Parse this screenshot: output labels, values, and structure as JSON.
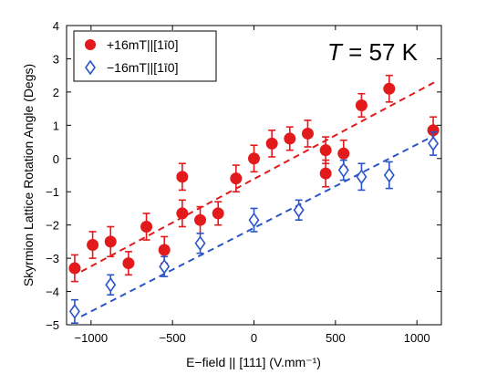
{
  "colors": {
    "series_pos": "#e31a1c",
    "series_neg": "#2a55c8"
  },
  "chart_data": {
    "type": "scatter",
    "title": "",
    "xlabel": "E−field || [111] (V.mm⁻¹)",
    "ylabel": "Skyrmion Lattice Rotation Angle (Degs)",
    "xlim": [
      -1150,
      1150
    ],
    "ylim": [
      -5,
      4
    ],
    "xticks": [
      -1000,
      -500,
      0,
      500,
      1000
    ],
    "xtick_labels": [
      "−1000",
      "−500",
      "0",
      "500",
      "1000"
    ],
    "yticks": [
      -5,
      -4,
      -3,
      -2,
      -1,
      0,
      1,
      2,
      3,
      4
    ],
    "ytick_labels": [
      "−5",
      "−4",
      "−3",
      "−2",
      "−1",
      "0",
      "1",
      "2",
      "3",
      "4"
    ],
    "grid": false,
    "legend_position": "top-left",
    "annotation": {
      "italic": "T",
      "text": " = 57 K"
    },
    "series": [
      {
        "name": "+16mT||[1ī0]",
        "marker": "filled-circle",
        "color": "#e31a1c",
        "points": [
          {
            "x": -1100,
            "y": -3.3,
            "err": 0.4
          },
          {
            "x": -990,
            "y": -2.6,
            "err": 0.4
          },
          {
            "x": -880,
            "y": -2.5,
            "err": 0.45
          },
          {
            "x": -770,
            "y": -3.15,
            "err": 0.35
          },
          {
            "x": -660,
            "y": -2.05,
            "err": 0.4
          },
          {
            "x": -550,
            "y": -2.75,
            "err": 0.4
          },
          {
            "x": -440,
            "y": -0.55,
            "err": 0.4
          },
          {
            "x": -440,
            "y": -1.65,
            "err": 0.4
          },
          {
            "x": -330,
            "y": -1.85,
            "err": 0.4
          },
          {
            "x": -220,
            "y": -1.65,
            "err": 0.35
          },
          {
            "x": -110,
            "y": -0.6,
            "err": 0.4
          },
          {
            "x": 0,
            "y": 0.0,
            "err": 0.4
          },
          {
            "x": 110,
            "y": 0.45,
            "err": 0.4
          },
          {
            "x": 220,
            "y": 0.6,
            "err": 0.35
          },
          {
            "x": 330,
            "y": 0.75,
            "err": 0.4
          },
          {
            "x": 440,
            "y": 0.25,
            "err": 0.4
          },
          {
            "x": 440,
            "y": -0.45,
            "err": 0.4
          },
          {
            "x": 550,
            "y": 0.15,
            "err": 0.4
          },
          {
            "x": 660,
            "y": 1.6,
            "err": 0.35
          },
          {
            "x": 830,
            "y": 2.1,
            "err": 0.4
          },
          {
            "x": 1100,
            "y": 0.85,
            "err": 0.4
          }
        ],
        "fit": {
          "x1": -1060,
          "y1": -3.4,
          "x2": 1110,
          "y2": 2.3
        }
      },
      {
        "name": "−16mT||[1ī0]",
        "marker": "open-diamond",
        "color": "#2a55c8",
        "points": [
          {
            "x": -1100,
            "y": -4.6,
            "err": 0.35
          },
          {
            "x": -880,
            "y": -3.8,
            "err": 0.3
          },
          {
            "x": -550,
            "y": -3.25,
            "err": 0.3
          },
          {
            "x": -330,
            "y": -2.55,
            "err": 0.3
          },
          {
            "x": 0,
            "y": -1.85,
            "err": 0.35
          },
          {
            "x": 275,
            "y": -1.55,
            "err": 0.3
          },
          {
            "x": 550,
            "y": -0.35,
            "err": 0.3
          },
          {
            "x": 660,
            "y": -0.55,
            "err": 0.4
          },
          {
            "x": 830,
            "y": -0.5,
            "err": 0.4
          },
          {
            "x": 1100,
            "y": 0.45,
            "err": 0.35
          }
        ],
        "fit": {
          "x1": -1060,
          "y1": -4.75,
          "x2": 1110,
          "y2": 0.7
        }
      }
    ]
  }
}
